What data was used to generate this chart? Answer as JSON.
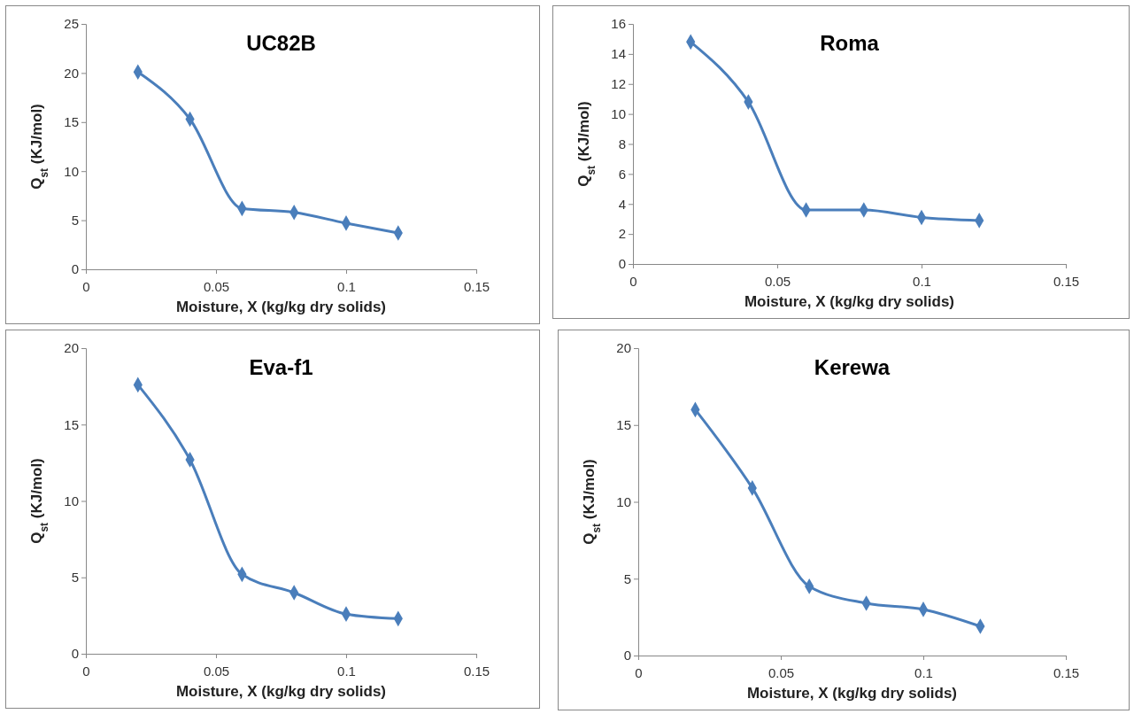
{
  "chart_data": [
    {
      "type": "line",
      "title": "UC82B",
      "xlabel": "Moisture, X (kg/kg dry solids)",
      "ylabel": "Q$_{st}$ (KJ/mol)",
      "x": [
        0.02,
        0.04,
        0.06,
        0.08,
        0.1,
        0.12
      ],
      "series": [
        {
          "color": "#4a7ebb",
          "values": [
            20.1,
            15.3,
            6.2,
            5.8,
            4.7,
            3.7
          ]
        }
      ],
      "xlim": [
        0,
        0.15
      ],
      "xticks": [
        0,
        0.05,
        0.1,
        0.15
      ],
      "ylim": [
        0,
        25
      ],
      "yticks": [
        0,
        5,
        10,
        15,
        20,
        25
      ],
      "grid": false,
      "marker": "diamond",
      "line_style": "solid"
    },
    {
      "type": "line",
      "title": "Roma",
      "xlabel": "Moisture, X (kg/kg dry solids)",
      "ylabel": "Q$_{st}$ (KJ/mol)",
      "x": [
        0.02,
        0.04,
        0.06,
        0.08,
        0.1,
        0.12
      ],
      "series": [
        {
          "color": "#4a7ebb",
          "values": [
            14.8,
            10.8,
            3.6,
            3.6,
            3.1,
            2.9
          ]
        }
      ],
      "xlim": [
        0,
        0.15
      ],
      "xticks": [
        0,
        0.05,
        0.1,
        0.15
      ],
      "ylim": [
        0,
        16
      ],
      "yticks": [
        0,
        2,
        4,
        6,
        8,
        10,
        12,
        14,
        16
      ],
      "grid": false,
      "marker": "diamond",
      "line_style": "solid"
    },
    {
      "type": "line",
      "title": "Eva-f1",
      "xlabel": "Moisture, X (kg/kg dry solids)",
      "ylabel": "Q$_{st}$ (KJ/mol)",
      "x": [
        0.02,
        0.04,
        0.06,
        0.08,
        0.1,
        0.12
      ],
      "series": [
        {
          "color": "#4a7ebb",
          "values": [
            17.6,
            12.7,
            5.2,
            4.0,
            2.6,
            2.3
          ]
        }
      ],
      "xlim": [
        0,
        0.15
      ],
      "xticks": [
        0,
        0.05,
        0.1,
        0.15
      ],
      "ylim": [
        0,
        20
      ],
      "yticks": [
        0,
        5,
        10,
        15,
        20
      ],
      "grid": false,
      "marker": "diamond",
      "line_style": "solid"
    },
    {
      "type": "line",
      "title": "Kerewa",
      "xlabel": "Moisture, X (kg/kg dry solids)",
      "ylabel": "Q$_{st}$ (KJ/mol)",
      "x": [
        0.02,
        0.04,
        0.06,
        0.08,
        0.1,
        0.12
      ],
      "series": [
        {
          "color": "#4a7ebb",
          "values": [
            16.0,
            10.9,
            4.5,
            3.4,
            3.0,
            1.9
          ]
        }
      ],
      "xlim": [
        0,
        0.15
      ],
      "xticks": [
        0,
        0.05,
        0.1,
        0.15
      ],
      "ylim": [
        0,
        20
      ],
      "yticks": [
        0,
        5,
        10,
        15,
        20
      ],
      "grid": false,
      "marker": "diamond",
      "line_style": "solid"
    }
  ]
}
